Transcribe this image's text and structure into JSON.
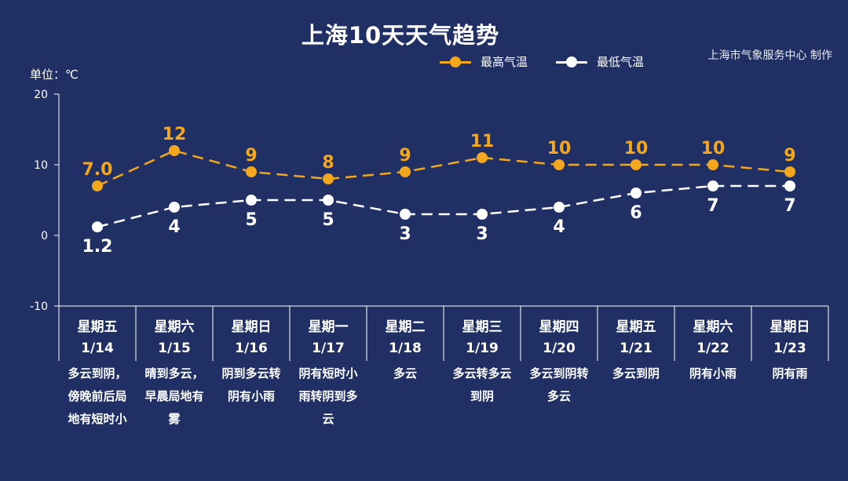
{
  "header": {
    "title": "上海10天天气趋势",
    "credit": "上海市气象服务中心 制作",
    "unit": "单位：℃"
  },
  "legend": [
    {
      "label": "最高气温",
      "color": "#f3a71c"
    },
    {
      "label": "最低气温",
      "color": "#ffffff"
    }
  ],
  "days": [
    {
      "weekday": "星期五",
      "date": "1/14",
      "desc": "多云到阴，傍晚前后局地有短时小"
    },
    {
      "weekday": "星期六",
      "date": "1/15",
      "desc": "晴到多云，早晨局地有雾"
    },
    {
      "weekday": "星期日",
      "date": "1/16",
      "desc": "阴到多云转阴有小雨"
    },
    {
      "weekday": "星期一",
      "date": "1/17",
      "desc": "阴有短时小雨转阴到多云"
    },
    {
      "weekday": "星期二",
      "date": "1/18",
      "desc": "多云"
    },
    {
      "weekday": "星期三",
      "date": "1/19",
      "desc": "多云转多云到阴"
    },
    {
      "weekday": "星期四",
      "date": "1/20",
      "desc": "多云到阴转多云"
    },
    {
      "weekday": "星期五",
      "date": "1/21",
      "desc": "多云到阴"
    },
    {
      "weekday": "星期六",
      "date": "1/22",
      "desc": "阴有小雨"
    },
    {
      "weekday": "星期日",
      "date": "1/23",
      "desc": "阴有雨"
    }
  ],
  "chart_data": {
    "type": "line",
    "title": "上海10天天气趋势",
    "ylabel": "单位：℃",
    "ylim": [
      -10,
      20
    ],
    "yticks": [
      20,
      10,
      0,
      -10
    ],
    "grid": false,
    "legend_position": "top-right",
    "categories": [
      "1/14",
      "1/15",
      "1/16",
      "1/17",
      "1/18",
      "1/19",
      "1/20",
      "1/21",
      "1/22",
      "1/23"
    ],
    "series": [
      {
        "name": "最高气温",
        "color": "#f3a71c",
        "values": [
          7.0,
          12,
          9,
          8,
          9,
          11,
          10,
          10,
          10,
          9
        ],
        "labels": [
          "7.0",
          "12",
          "9",
          "8",
          "9",
          "11",
          "10",
          "10",
          "10",
          "9"
        ],
        "label_side": "above"
      },
      {
        "name": "最低气温",
        "color": "#ffffff",
        "values": [
          1.2,
          4,
          5,
          5,
          3,
          3,
          4,
          6,
          7,
          7
        ],
        "labels": [
          "1.2",
          "4",
          "5",
          "5",
          "3",
          "3",
          "4",
          "6",
          "7",
          "7"
        ],
        "label_side": "below"
      }
    ]
  }
}
